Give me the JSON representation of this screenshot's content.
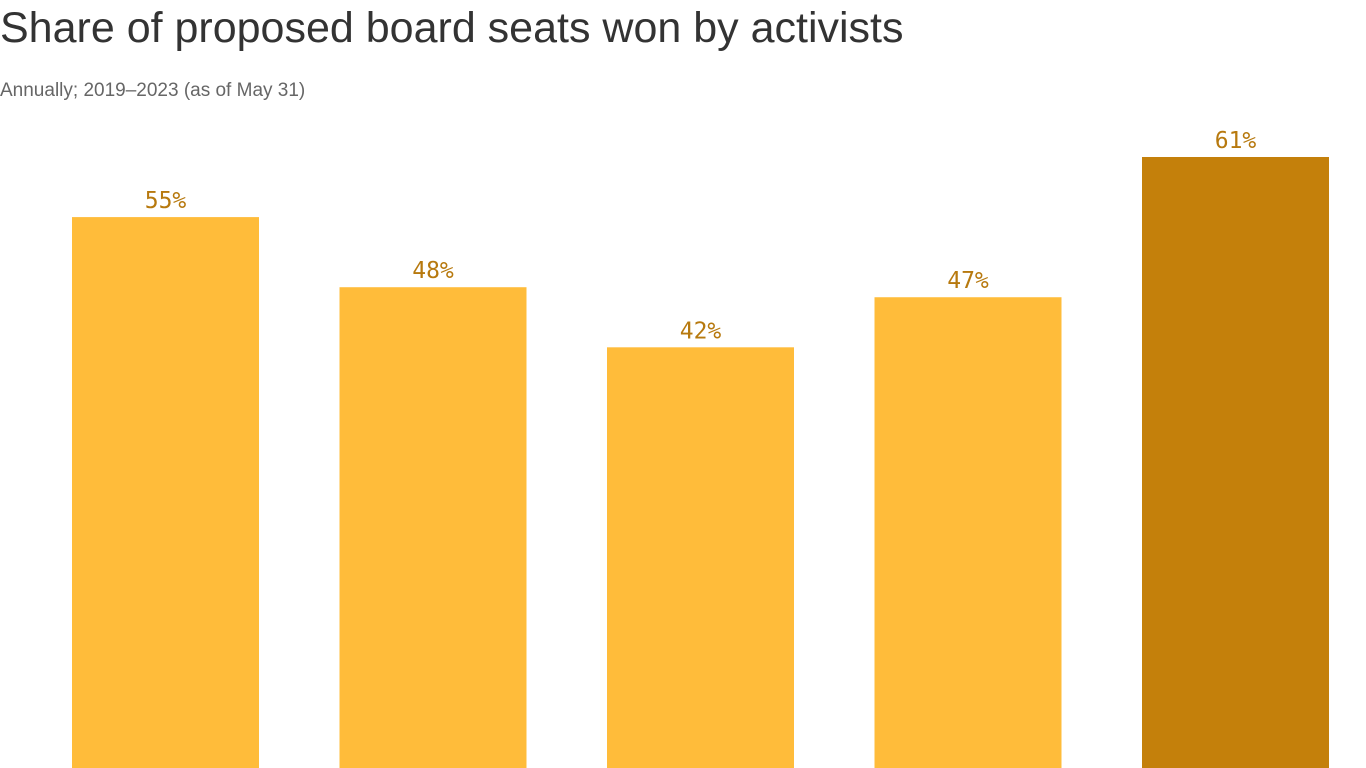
{
  "title": "Share of proposed board seats won by activists",
  "subtitle": "Annually; 2019–2023 (as of May 31)",
  "colors": {
    "bar": "#FFBC3A",
    "highlight_bar": "#C4800B",
    "label": "#B7790E"
  },
  "chart_data": {
    "type": "bar",
    "title": "Share of proposed board seats won by activists",
    "subtitle": "Annually; 2019–2023 (as of May 31)",
    "xlabel": "",
    "ylabel": "",
    "values": [
      55,
      48,
      42,
      47,
      61
    ],
    "labels": [
      "55%",
      "48%",
      "42%",
      "47%",
      "61%"
    ],
    "highlight_index": 4,
    "ylim": [
      0,
      61
    ],
    "grid": false,
    "legend": "none"
  }
}
